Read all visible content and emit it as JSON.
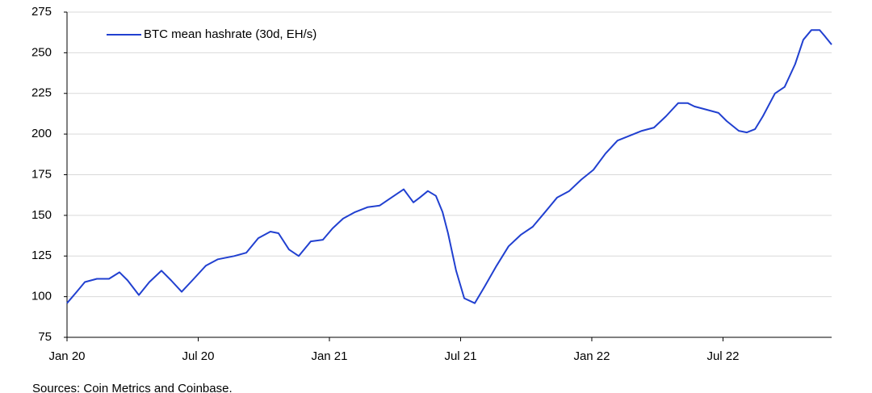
{
  "chart_data": {
    "type": "line",
    "x": [
      2020.0,
      2020.037,
      2020.068,
      2020.114,
      2020.16,
      2020.2,
      2020.231,
      2020.274,
      2020.314,
      2020.36,
      2020.397,
      2020.437,
      2020.483,
      2020.529,
      2020.575,
      2020.637,
      2020.683,
      2020.729,
      2020.775,
      2020.806,
      2020.846,
      2020.883,
      2020.929,
      2020.975,
      2021.012,
      2021.052,
      2021.098,
      2021.145,
      2021.191,
      2021.237,
      2021.283,
      2021.32,
      2021.345,
      2021.375,
      2021.406,
      2021.431,
      2021.452,
      2021.483,
      2021.514,
      2021.554,
      2021.591,
      2021.637,
      2021.683,
      2021.729,
      2021.775,
      2021.822,
      2021.868,
      2021.914,
      2021.96,
      2022.006,
      2022.052,
      2022.098,
      2022.145,
      2022.191,
      2022.237,
      2022.283,
      2022.329,
      2022.366,
      2022.391,
      2022.437,
      2022.483,
      2022.514,
      2022.56,
      2022.591,
      2022.622,
      2022.652,
      2022.698,
      2022.735,
      2022.775,
      2022.806,
      2022.837,
      2022.868,
      2022.889,
      2022.914
    ],
    "series": [
      {
        "name": "BTC mean hashrate (30d, EH/s)",
        "color": "#2140d0",
        "values": [
          96,
          103,
          109,
          111,
          111,
          115,
          110,
          101,
          109,
          116,
          110,
          103,
          111,
          119,
          123,
          125,
          127,
          136,
          140,
          139,
          129,
          125,
          134,
          135,
          142,
          148,
          152,
          155,
          156,
          161,
          166,
          158,
          161,
          165,
          162,
          152,
          139,
          116,
          99,
          96,
          106,
          119,
          131,
          138,
          143,
          152,
          161,
          165,
          172,
          178,
          188,
          196,
          199,
          202,
          204,
          211,
          219,
          219,
          217,
          215,
          213,
          208,
          202,
          201,
          203,
          211,
          225,
          229,
          243,
          258,
          264,
          264,
          260,
          255
        ]
      }
    ],
    "xlim": [
      2020.0,
      2022.914
    ],
    "xticks": [
      {
        "value": 2020.0,
        "label": "Jan 20"
      },
      {
        "value": 2020.5,
        "label": "Jul 20"
      },
      {
        "value": 2021.0,
        "label": "Jan 21"
      },
      {
        "value": 2021.5,
        "label": "Jul 21"
      },
      {
        "value": 2022.0,
        "label": "Jan 22"
      },
      {
        "value": 2022.5,
        "label": "Jul 22"
      }
    ],
    "ylim": [
      75,
      275
    ],
    "yticks": [
      75,
      100,
      125,
      150,
      175,
      200,
      225,
      250,
      275
    ],
    "grid": true,
    "legend": "upper left",
    "source": "Sources: Coin Metrics and Coinbase."
  }
}
